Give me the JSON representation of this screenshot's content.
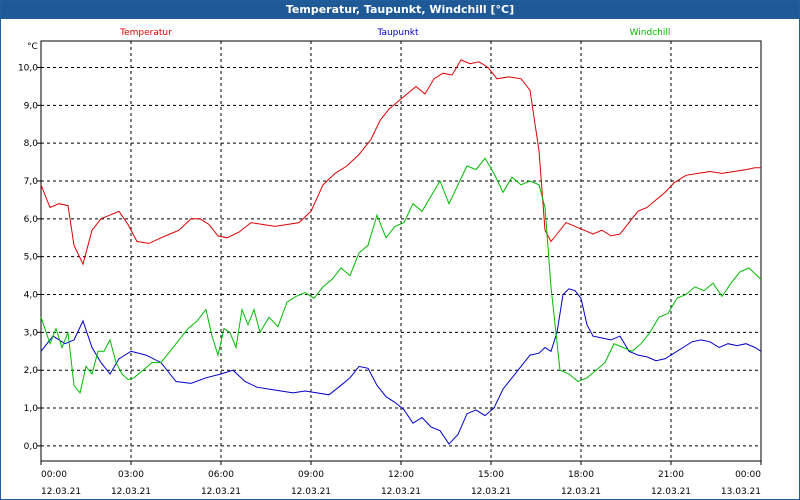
{
  "window": {
    "title": "Temperatur, Taupunkt, Windchill [°C]"
  },
  "colors": {
    "temperature": "#dd0000",
    "dewpoint": "#0000cc",
    "windchill": "#00bb00",
    "titlebar": "#1f5a96"
  },
  "chart_data": {
    "type": "line",
    "title": "Temperatur, Taupunkt, Windchill [°C]",
    "ylabel": "°C",
    "ylim": [
      -0.4,
      10.7
    ],
    "xlim": [
      0,
      24
    ],
    "yticks": [
      "0,0",
      "1,0",
      "2,0",
      "3,0",
      "4,0",
      "5,0",
      "6,0",
      "7,0",
      "8,0",
      "9,0",
      "10,0"
    ],
    "ytick_values": [
      0,
      1,
      2,
      3,
      4,
      5,
      6,
      7,
      8,
      9,
      10
    ],
    "xticks": [
      {
        "time": "00:00",
        "date": "12.03.21"
      },
      {
        "time": "03:00",
        "date": "12.03.21"
      },
      {
        "time": "06:00",
        "date": "12.03.21"
      },
      {
        "time": "09:00",
        "date": "12.03.21"
      },
      {
        "time": "12:00",
        "date": "12.03.21"
      },
      {
        "time": "15:00",
        "date": "12.03.21"
      },
      {
        "time": "18:00",
        "date": "12.03.21"
      },
      {
        "time": "21:00",
        "date": "12.03.21"
      },
      {
        "time": "00:00",
        "date": "13.03.21"
      }
    ],
    "xtick_hours": [
      0,
      3,
      6,
      9,
      12,
      15,
      18,
      21,
      24
    ],
    "grid": true,
    "series": [
      {
        "name": "Temperatur",
        "color": "#dd0000",
        "x": [
          0,
          0.3,
          0.6,
          0.9,
          1.1,
          1.4,
          1.7,
          2.0,
          2.3,
          2.6,
          2.9,
          3.2,
          3.6,
          4.0,
          4.3,
          4.6,
          5.0,
          5.3,
          5.6,
          5.9,
          6.2,
          6.6,
          7.0,
          7.4,
          7.8,
          8.2,
          8.6,
          9.0,
          9.4,
          9.8,
          10.2,
          10.6,
          11.0,
          11.3,
          11.6,
          11.9,
          12.2,
          12.5,
          12.8,
          13.1,
          13.4,
          13.7,
          14.0,
          14.3,
          14.6,
          14.9,
          15.2,
          15.6,
          16.0,
          16.3,
          16.6,
          16.8,
          17.0,
          17.2,
          17.5,
          17.8,
          18.1,
          18.4,
          18.7,
          19.0,
          19.3,
          19.6,
          19.9,
          20.2,
          20.5,
          20.8,
          21.1,
          21.5,
          21.9,
          22.3,
          22.7,
          23.1,
          23.5,
          23.8,
          24.0
        ],
        "values": [
          6.9,
          6.3,
          6.4,
          6.35,
          5.3,
          4.8,
          5.7,
          6.0,
          6.1,
          6.2,
          5.85,
          5.4,
          5.35,
          5.5,
          5.6,
          5.7,
          6.0,
          6.0,
          5.85,
          5.55,
          5.5,
          5.65,
          5.9,
          5.85,
          5.8,
          5.85,
          5.9,
          6.2,
          6.9,
          7.2,
          7.4,
          7.7,
          8.1,
          8.6,
          8.9,
          9.1,
          9.3,
          9.5,
          9.3,
          9.7,
          9.85,
          9.8,
          10.2,
          10.1,
          10.15,
          10.0,
          9.7,
          9.75,
          9.7,
          9.4,
          7.8,
          5.7,
          5.4,
          5.6,
          5.9,
          5.8,
          5.7,
          5.6,
          5.7,
          5.55,
          5.6,
          5.9,
          6.2,
          6.3,
          6.5,
          6.7,
          6.95,
          7.15,
          7.2,
          7.25,
          7.2,
          7.25,
          7.3,
          7.35,
          7.35
        ]
      },
      {
        "name": "Taupunkt",
        "color": "#0000cc",
        "x": [
          0,
          0.4,
          0.8,
          1.1,
          1.4,
          1.7,
          2.0,
          2.3,
          2.6,
          3.0,
          3.5,
          4.0,
          4.5,
          5.0,
          5.5,
          6.0,
          6.4,
          6.8,
          7.2,
          7.6,
          8.0,
          8.4,
          8.8,
          9.2,
          9.6,
          10.0,
          10.3,
          10.6,
          10.9,
          11.2,
          11.5,
          11.8,
          12.1,
          12.4,
          12.7,
          13.0,
          13.3,
          13.6,
          13.9,
          14.2,
          14.5,
          14.8,
          15.1,
          15.4,
          15.7,
          16.0,
          16.3,
          16.6,
          16.8,
          17.0,
          17.2,
          17.4,
          17.6,
          17.8,
          18.0,
          18.2,
          18.4,
          18.7,
          19.0,
          19.3,
          19.6,
          19.9,
          20.2,
          20.5,
          20.8,
          21.1,
          21.4,
          21.7,
          22.0,
          22.3,
          22.6,
          22.9,
          23.2,
          23.5,
          23.8,
          24.0
        ],
        "values": [
          2.5,
          2.9,
          2.7,
          2.8,
          3.3,
          2.6,
          2.2,
          1.9,
          2.3,
          2.5,
          2.4,
          2.2,
          1.7,
          1.65,
          1.8,
          1.9,
          2.0,
          1.7,
          1.55,
          1.5,
          1.45,
          1.4,
          1.45,
          1.4,
          1.35,
          1.6,
          1.8,
          2.1,
          2.05,
          1.6,
          1.3,
          1.15,
          0.95,
          0.6,
          0.75,
          0.5,
          0.4,
          0.05,
          0.3,
          0.85,
          0.95,
          0.8,
          1.0,
          1.5,
          1.8,
          2.1,
          2.4,
          2.45,
          2.6,
          2.5,
          3.0,
          4.0,
          4.15,
          4.1,
          3.9,
          3.2,
          2.9,
          2.85,
          2.8,
          2.9,
          2.5,
          2.4,
          2.35,
          2.25,
          2.3,
          2.45,
          2.6,
          2.75,
          2.8,
          2.75,
          2.6,
          2.7,
          2.65,
          2.7,
          2.6,
          2.5
        ]
      },
      {
        "name": "Windchill",
        "color": "#00bb00",
        "x": [
          0,
          0.3,
          0.5,
          0.7,
          0.9,
          1.1,
          1.3,
          1.5,
          1.7,
          1.9,
          2.1,
          2.3,
          2.5,
          2.7,
          2.9,
          3.1,
          3.4,
          3.7,
          4.0,
          4.3,
          4.6,
          4.9,
          5.2,
          5.5,
          5.7,
          5.9,
          6.1,
          6.3,
          6.5,
          6.7,
          6.9,
          7.1,
          7.3,
          7.6,
          7.9,
          8.2,
          8.5,
          8.8,
          9.1,
          9.4,
          9.7,
          10.0,
          10.3,
          10.6,
          10.9,
          11.2,
          11.5,
          11.8,
          12.1,
          12.4,
          12.7,
          13.0,
          13.3,
          13.6,
          13.9,
          14.2,
          14.5,
          14.8,
          15.1,
          15.4,
          15.7,
          16.0,
          16.3,
          16.6,
          16.8,
          17.0,
          17.3,
          17.6,
          17.9,
          18.2,
          18.5,
          18.8,
          19.1,
          19.4,
          19.7,
          20.0,
          20.3,
          20.6,
          20.9,
          21.2,
          21.5,
          21.8,
          22.1,
          22.4,
          22.7,
          23.0,
          23.3,
          23.6,
          23.8,
          24.0
        ],
        "values": [
          3.4,
          2.7,
          3.1,
          2.6,
          3.0,
          1.6,
          1.4,
          2.1,
          1.9,
          2.5,
          2.5,
          2.8,
          2.2,
          1.9,
          1.75,
          1.8,
          2.0,
          2.2,
          2.2,
          2.5,
          2.8,
          3.1,
          3.3,
          3.6,
          2.9,
          2.4,
          3.1,
          3.0,
          2.6,
          3.6,
          3.2,
          3.6,
          3.0,
          3.4,
          3.15,
          3.8,
          3.95,
          4.05,
          3.9,
          4.2,
          4.4,
          4.7,
          4.5,
          5.1,
          5.3,
          6.1,
          5.5,
          5.8,
          5.9,
          6.4,
          6.2,
          6.6,
          7.0,
          6.4,
          6.9,
          7.4,
          7.3,
          7.6,
          7.2,
          6.7,
          7.1,
          6.9,
          7.0,
          6.9,
          6.3,
          4.2,
          2.0,
          1.9,
          1.7,
          1.8,
          2.0,
          2.2,
          2.7,
          2.6,
          2.5,
          2.7,
          3.0,
          3.4,
          3.5,
          3.9,
          4.0,
          4.2,
          4.1,
          4.3,
          3.95,
          4.3,
          4.6,
          4.7,
          4.55,
          4.4
        ]
      }
    ]
  }
}
